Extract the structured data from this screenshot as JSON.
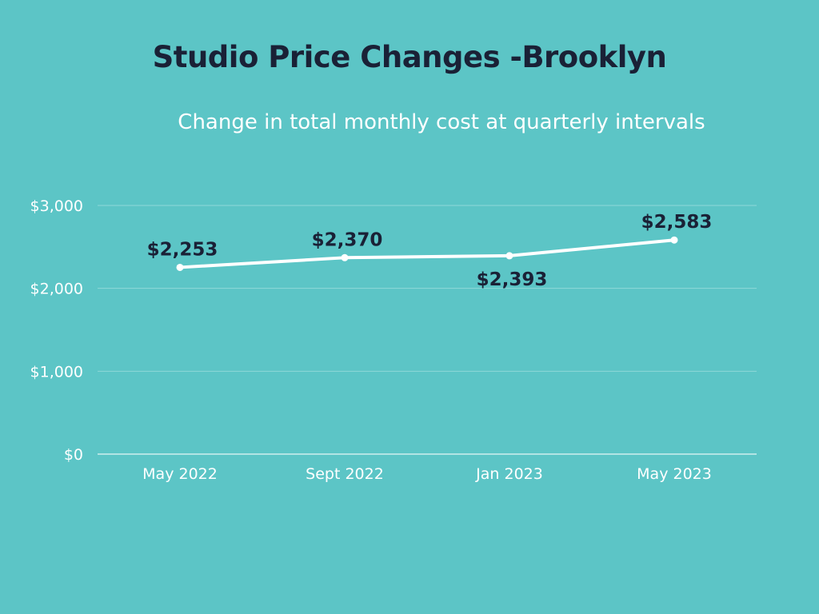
{
  "theme": {
    "background": "#5CC5C6",
    "title_color": "#1A2136",
    "line_color": "#FFFFFF",
    "grid_color": "#8ED8D8",
    "label_color": "#1A2136"
  },
  "chart_data": {
    "type": "line",
    "title": "Studio Price Changes -Brooklyn",
    "subtitle": "Change in total monthly cost at quarterly intervals",
    "categories": [
      "May 2022",
      "Sept 2022",
      "Jan 2023",
      "May 2023"
    ],
    "series": [
      {
        "values": [
          2253,
          2370,
          2393,
          2583
        ]
      }
    ],
    "data_labels": [
      "$2,253",
      "$2,370",
      "$2,393",
      "$2,583"
    ],
    "data_label_positions": [
      "above",
      "above",
      "below",
      "above"
    ],
    "y_ticks": [
      0,
      1000,
      2000,
      3000
    ],
    "y_tick_labels": [
      "$0",
      "$1,000",
      "$2,000",
      "$3,000"
    ],
    "ylim": [
      0,
      3000
    ],
    "grid": true,
    "legend": false
  }
}
